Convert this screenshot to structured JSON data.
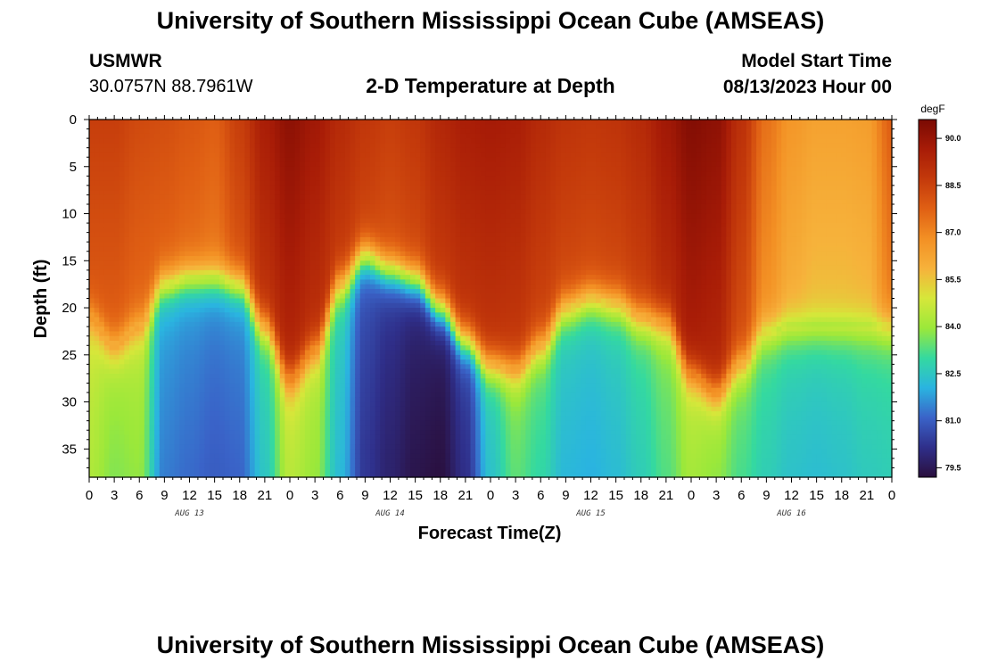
{
  "header": {
    "title": "University of Southern Mississippi Ocean Cube (AMSEAS)",
    "station": "USMWR",
    "coords": "30.0757N  88.7961W",
    "subtitle": "2-D Temperature at Depth",
    "model_label": "Model Start Time",
    "model_time": "08/13/2023 Hour 00"
  },
  "footer": {
    "title": "University of Southern Mississippi Ocean Cube (AMSEAS)"
  },
  "colors": {
    "stops": [
      "#2a0f3d",
      "#2f2f8a",
      "#3a63c8",
      "#2ab4e0",
      "#34d9a0",
      "#9be83a",
      "#d6e73a",
      "#f6b23b",
      "#f39024",
      "#e06014",
      "#c43a0b",
      "#a81c07",
      "#7a0a03"
    ]
  },
  "chart_data": {
    "type": "heatmap",
    "title": "2-D Temperature at Depth",
    "xlabel": "Forecast Time(Z)",
    "ylabel": "Depth (ft)",
    "x_range_hours": [
      0,
      96
    ],
    "ylim": [
      0,
      38
    ],
    "y_ticks": [
      0,
      5,
      10,
      15,
      20,
      25,
      30,
      35
    ],
    "x_ticks": [
      {
        "hour": 0,
        "label": "0"
      },
      {
        "hour": 3,
        "label": "3"
      },
      {
        "hour": 6,
        "label": "6"
      },
      {
        "hour": 9,
        "label": "9"
      },
      {
        "hour": 12,
        "label": "12"
      },
      {
        "hour": 15,
        "label": "15"
      },
      {
        "hour": 18,
        "label": "18"
      },
      {
        "hour": 21,
        "label": "21"
      },
      {
        "hour": 24,
        "label": "0"
      },
      {
        "hour": 27,
        "label": "3"
      },
      {
        "hour": 30,
        "label": "6"
      },
      {
        "hour": 33,
        "label": "9"
      },
      {
        "hour": 36,
        "label": "12"
      },
      {
        "hour": 39,
        "label": "15"
      },
      {
        "hour": 42,
        "label": "18"
      },
      {
        "hour": 45,
        "label": "21"
      },
      {
        "hour": 48,
        "label": "0"
      },
      {
        "hour": 51,
        "label": "3"
      },
      {
        "hour": 54,
        "label": "6"
      },
      {
        "hour": 57,
        "label": "9"
      },
      {
        "hour": 60,
        "label": "12"
      },
      {
        "hour": 63,
        "label": "15"
      },
      {
        "hour": 66,
        "label": "18"
      },
      {
        "hour": 69,
        "label": "21"
      },
      {
        "hour": 72,
        "label": "0"
      },
      {
        "hour": 75,
        "label": "3"
      },
      {
        "hour": 78,
        "label": "6"
      },
      {
        "hour": 81,
        "label": "9"
      },
      {
        "hour": 84,
        "label": "12"
      },
      {
        "hour": 87,
        "label": "15"
      },
      {
        "hour": 90,
        "label": "18"
      },
      {
        "hour": 93,
        "label": "21"
      },
      {
        "hour": 96,
        "label": "0"
      }
    ],
    "day_labels": [
      {
        "hour": 12,
        "label": "AUG 13"
      },
      {
        "hour": 36,
        "label": "AUG 14"
      },
      {
        "hour": 60,
        "label": "AUG 15"
      },
      {
        "hour": 84,
        "label": "AUG 16"
      }
    ],
    "colorbar": {
      "unit": "degF",
      "min": 79.2,
      "max": 90.6,
      "ticks": [
        90.0,
        88.5,
        87.0,
        85.5,
        84.0,
        82.5,
        81.0,
        79.5
      ]
    },
    "profile_hours": [
      0,
      3,
      6,
      9,
      12,
      15,
      18,
      21,
      24,
      27,
      30,
      33,
      36,
      39,
      42,
      45,
      48,
      51,
      54,
      57,
      60,
      63,
      66,
      69,
      72,
      75,
      78,
      81,
      84,
      87,
      90,
      93,
      96
    ],
    "surface_temp": [
      88.6,
      88.6,
      88.3,
      88.2,
      88.0,
      87.8,
      88.6,
      89.6,
      90.2,
      89.8,
      89.2,
      88.8,
      88.6,
      88.8,
      89.3,
      89.6,
      89.7,
      89.6,
      89.2,
      88.9,
      88.8,
      88.9,
      89.2,
      89.8,
      90.4,
      90.2,
      89.0,
      87.4,
      86.6,
      86.3,
      86.3,
      86.4,
      87.8
    ],
    "thermocline_depth_ft": [
      21.0,
      24.0,
      22.0,
      17.5,
      16.8,
      16.8,
      17.5,
      22.0,
      27.5,
      24.5,
      17.5,
      14.5,
      16.0,
      17.0,
      20.0,
      23.5,
      26.0,
      26.5,
      24.0,
      20.0,
      19.0,
      19.5,
      21.0,
      21.5,
      27.0,
      29.0,
      26.0,
      22.5,
      22.0,
      22.0,
      22.0,
      22.0,
      22.0
    ],
    "bottom_temp": [
      84.6,
      84.0,
      84.2,
      81.8,
      81.6,
      81.4,
      81.5,
      82.8,
      84.6,
      84.2,
      82.6,
      80.7,
      80.2,
      79.8,
      79.6,
      80.4,
      82.6,
      83.6,
      83.2,
      82.5,
      82.4,
      82.6,
      83.0,
      83.6,
      84.3,
      84.0,
      83.4,
      83.0,
      82.7,
      82.6,
      82.7,
      82.9,
      83.0
    ]
  }
}
